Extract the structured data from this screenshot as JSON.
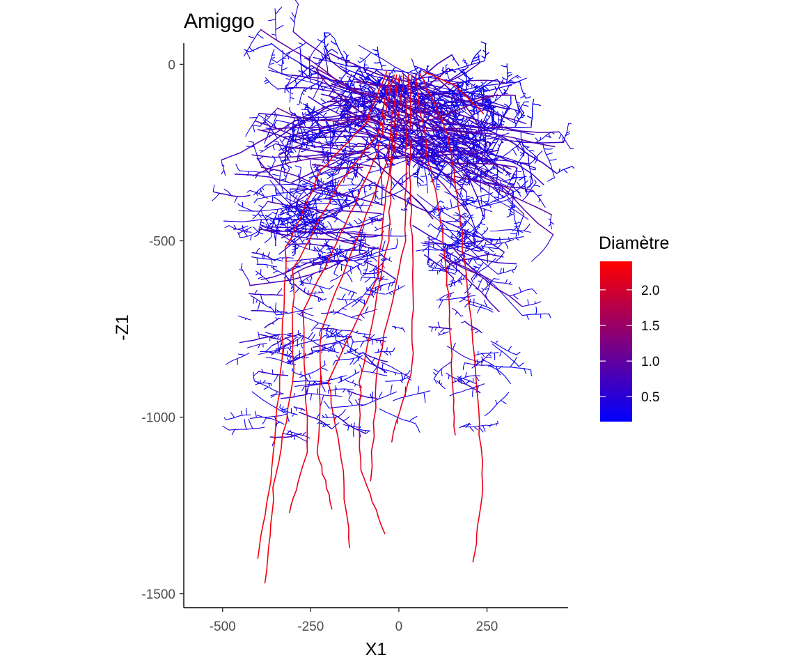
{
  "chart_data": {
    "type": "line",
    "subtype": "root-architecture-segments",
    "title": "Amiggo",
    "xlabel": "X1",
    "ylabel": "-Z1",
    "xlim": [
      -610,
      480
    ],
    "ylim": [
      -1540,
      60
    ],
    "x_ticks": [
      -500,
      -250,
      0,
      250
    ],
    "x_tick_labels": [
      "-500",
      "-250",
      "0",
      "250"
    ],
    "y_ticks": [
      0,
      -500,
      -1000,
      -1500
    ],
    "y_tick_labels": [
      "0",
      "-500",
      "-1000",
      "-1500"
    ],
    "grid": false,
    "legend": {
      "title": "Diamètre",
      "placement": "right",
      "min": 0.15,
      "max": 2.4,
      "low_color": "#0000FF",
      "high_color": "#FF0000",
      "ticks": [
        0.5,
        1.0,
        1.5,
        2.0
      ],
      "tick_labels": [
        "0.5",
        "1.0",
        "1.5",
        "2.0"
      ]
    },
    "taproots": [
      {
        "diameter": 2.3,
        "points": [
          [
            -35,
            -20
          ],
          [
            -90,
            -160
          ],
          [
            -220,
            -300
          ],
          [
            -320,
            -520
          ],
          [
            -330,
            -800
          ],
          [
            -360,
            -1150
          ],
          [
            -400,
            -1400
          ]
        ]
      },
      {
        "diameter": 2.3,
        "points": [
          [
            -25,
            -25
          ],
          [
            -60,
            -200
          ],
          [
            -170,
            -340
          ],
          [
            -300,
            -580
          ],
          [
            -300,
            -900
          ],
          [
            -355,
            -1200
          ],
          [
            -380,
            -1470
          ]
        ]
      },
      {
        "diameter": 2.2,
        "points": [
          [
            -15,
            -30
          ],
          [
            -60,
            -250
          ],
          [
            -150,
            -450
          ],
          [
            -270,
            -700
          ],
          [
            -260,
            -1100
          ],
          [
            -310,
            -1270
          ]
        ]
      },
      {
        "diameter": 2.2,
        "points": [
          [
            -5,
            -30
          ],
          [
            -30,
            -260
          ],
          [
            -100,
            -450
          ],
          [
            -220,
            -750
          ],
          [
            -230,
            -1100
          ],
          [
            -190,
            -1260
          ]
        ]
      },
      {
        "diameter": 2.2,
        "points": [
          [
            0,
            -30
          ],
          [
            -30,
            -320
          ],
          [
            -60,
            -600
          ],
          [
            -200,
            -900
          ],
          [
            -160,
            -1150
          ],
          [
            -140,
            -1370
          ]
        ]
      },
      {
        "diameter": 2.2,
        "points": [
          [
            15,
            -30
          ],
          [
            -20,
            -280
          ],
          [
            -30,
            -500
          ],
          [
            -110,
            -900
          ],
          [
            -110,
            -1150
          ],
          [
            -40,
            -1330
          ]
        ]
      },
      {
        "diameter": 2.1,
        "points": [
          [
            25,
            -30
          ],
          [
            20,
            -250
          ],
          [
            20,
            -500
          ],
          [
            -60,
            -850
          ],
          [
            -80,
            -1180
          ]
        ]
      },
      {
        "diameter": 2.1,
        "points": [
          [
            35,
            -30
          ],
          [
            30,
            -300
          ],
          [
            40,
            -600
          ],
          [
            40,
            -850
          ],
          [
            -20,
            -1070
          ]
        ]
      },
      {
        "diameter": 2.2,
        "points": [
          [
            45,
            -25
          ],
          [
            80,
            -250
          ],
          [
            120,
            -450
          ],
          [
            140,
            -650
          ],
          [
            150,
            -850
          ],
          [
            160,
            -1050
          ]
        ]
      },
      {
        "diameter": 2.2,
        "points": [
          [
            60,
            -25
          ],
          [
            140,
            -200
          ],
          [
            170,
            -400
          ],
          [
            190,
            -600
          ],
          [
            220,
            -900
          ],
          [
            240,
            -1200
          ],
          [
            210,
            -1410
          ]
        ]
      },
      {
        "diameter": 2.3,
        "points": [
          [
            70,
            -20
          ],
          [
            160,
            -60
          ],
          [
            240,
            -140
          ]
        ]
      }
    ]
  }
}
